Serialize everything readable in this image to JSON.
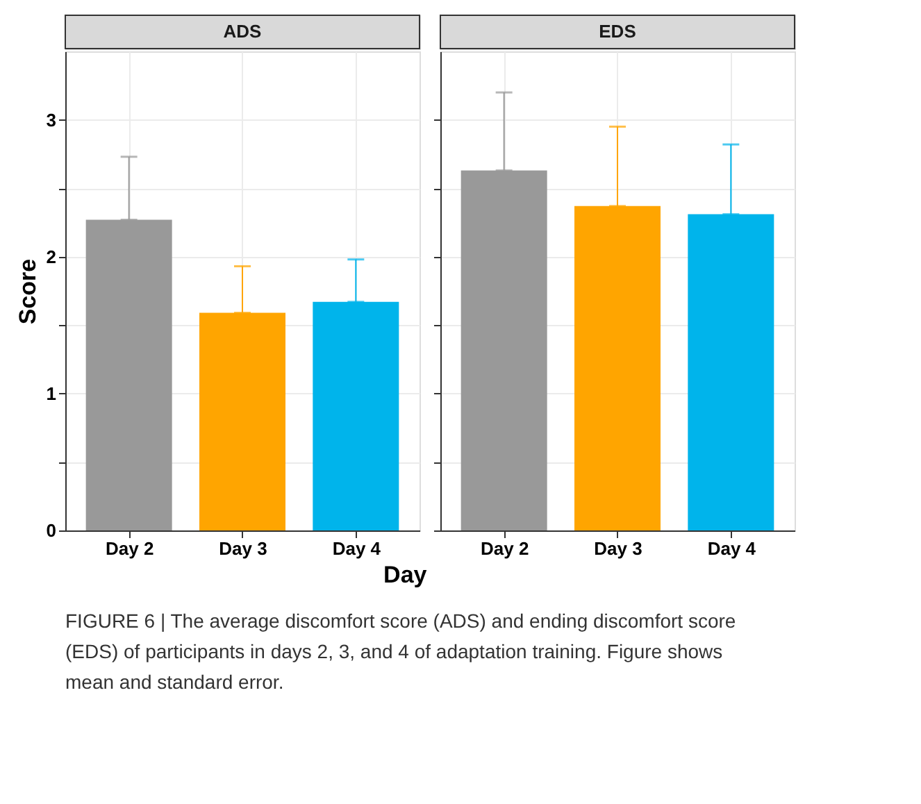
{
  "chart_data": [
    {
      "type": "bar",
      "title": "ADS",
      "ylabel": "Score",
      "xlabel": "Day",
      "categories": [
        "Day 2",
        "Day 3",
        "Day 4"
      ],
      "values": [
        2.27,
        1.59,
        1.67
      ],
      "colors": [
        "#999999",
        "#ffa500",
        "#00b4eb"
      ],
      "errors": [
        [
          2.27,
          2.73
        ],
        [
          1.59,
          1.93
        ],
        [
          1.67,
          1.98
        ]
      ],
      "ylim": [
        0,
        3.5
      ],
      "yticks": [
        0,
        {
          "value": 0.5,
          "label": null
        },
        1,
        {
          "value": 1.5,
          "label": null
        },
        2,
        {
          "value": 2.5,
          "label": null
        },
        3
      ],
      "grid": true,
      "annotations": [
        "FIGURE 6 | The average discomfort score (ADS) and ending discomfort score (EDS) of participants in days 2, 3, and 4 of adaptation training. Figure shows mean and standard error."
      ]
    },
    {
      "type": "bar",
      "title": "EDS",
      "categories": [
        "Day 2",
        "Day 3",
        "Day 4"
      ],
      "values": [
        2.63,
        2.37,
        2.31
      ],
      "colors": [
        "#999999",
        "#ffa500",
        "#00b4eb"
      ],
      "errors": [
        [
          2.63,
          3.2
        ],
        [
          2.37,
          2.95
        ],
        [
          2.31,
          2.82
        ]
      ],
      "ylim": [
        0,
        3.5
      ],
      "yticks": [
        0,
        {
          "value": 0.5,
          "label": null
        },
        1,
        {
          "value": 1.5,
          "label": null
        },
        2,
        {
          "value": 2.5,
          "label": null
        },
        3
      ],
      "grid": true,
      "tick_labels": "x"
    }
  ]
}
